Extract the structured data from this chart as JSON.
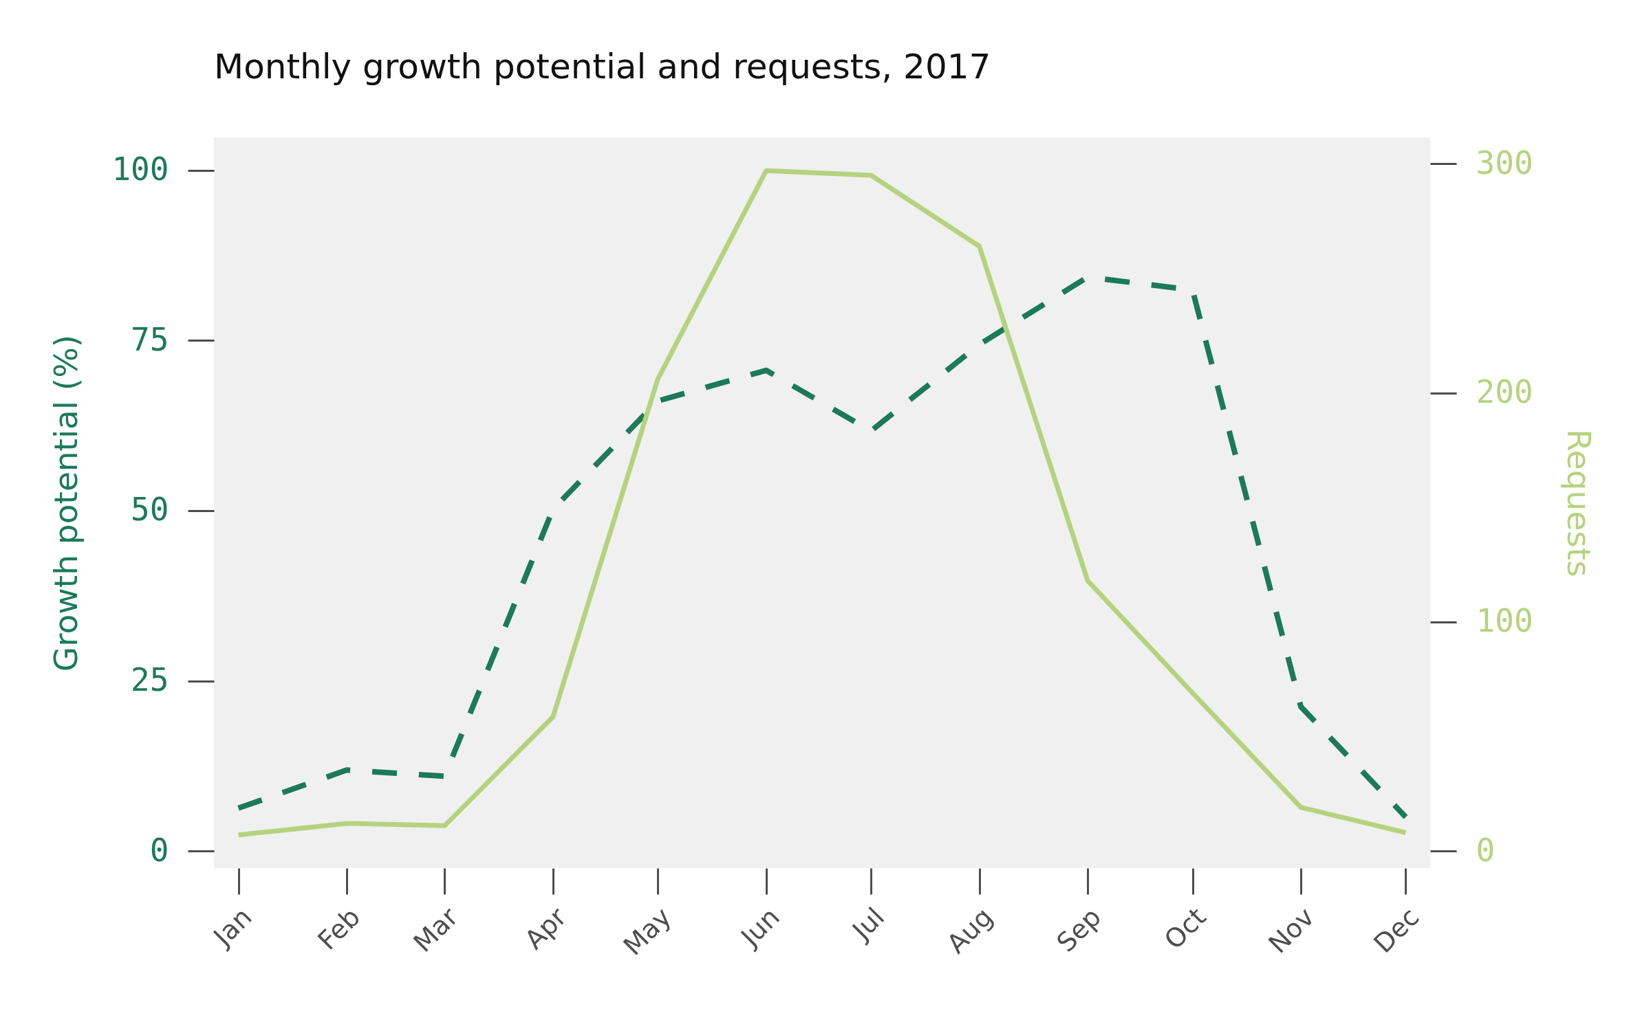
{
  "chart_data": {
    "type": "line",
    "title": "Monthly growth potential and requests, 2017",
    "ylabel": "Growth potential (%)",
    "y2label": "Requests",
    "x": [
      "2017-01",
      "2017-02",
      "2017-03",
      "2017-04",
      "2017-05",
      "2017-06",
      "2017-07",
      "2017-08",
      "2017-09",
      "2017-10",
      "2017-11",
      "2017-12"
    ],
    "series": [
      {
        "color": "#1b7a58",
        "line_style": "dashed",
        "values": [
          6.3,
          11.9,
          11.0,
          50.2,
          66.1,
          70.6,
          61.7,
          74.4,
          84.3,
          82.4,
          21.2,
          5
        ]
      },
      {
        "color": "#b5d37f",
        "line_style": "solid",
        "axis": "y2",
        "values": [
          7,
          12,
          11,
          58.5,
          206,
          297,
          295,
          264,
          118,
          69,
          19,
          8
        ]
      }
    ],
    "xlim": [
      "2016-12-25",
      "2017-12-08"
    ],
    "xticks": [
      {
        "value": "2017-01",
        "label": "Jan"
      },
      {
        "value": "2017-02",
        "label": "Feb"
      },
      {
        "value": "2017-03",
        "label": "Mar"
      },
      {
        "value": "2017-04",
        "label": "Apr"
      },
      {
        "value": "2017-05",
        "label": "May"
      },
      {
        "value": "2017-06",
        "label": "Jun"
      },
      {
        "value": "2017-07",
        "label": "Jul"
      },
      {
        "value": "2017-08",
        "label": "Aug"
      },
      {
        "value": "2017-09",
        "label": "Sep"
      },
      {
        "value": "2017-10",
        "label": "Oct"
      },
      {
        "value": "2017-11",
        "label": "Nov"
      },
      {
        "value": "2017-12",
        "label": "Dec"
      }
    ],
    "ylim": [
      -2.5,
      104.8
    ],
    "yticks": [
      0,
      25,
      50,
      75,
      100
    ],
    "y2lim": [
      -7.5,
      311.5
    ],
    "y2ticks": [
      0,
      100,
      200,
      300
    ]
  }
}
